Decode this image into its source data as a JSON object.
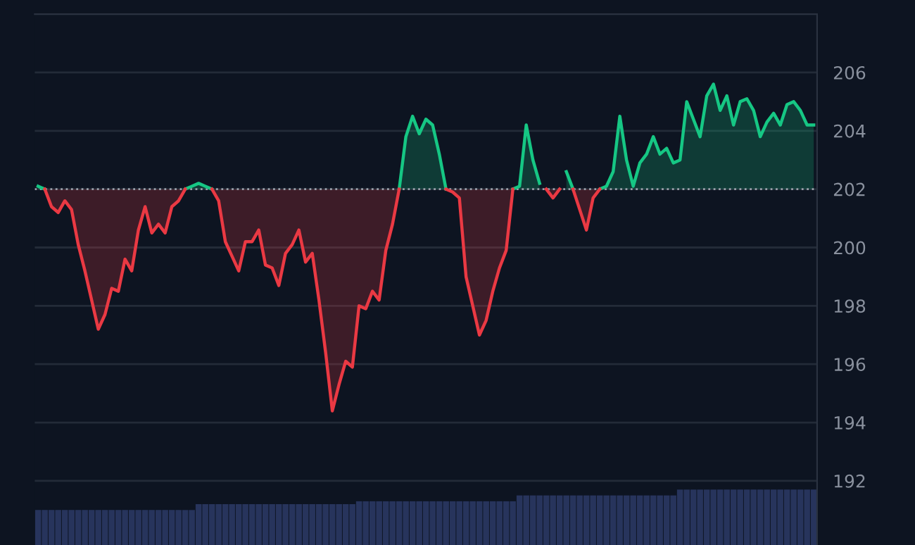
{
  "chart_data": {
    "type": "line",
    "categories": [
      null,
      null,
      null,
      null,
      null,
      null,
      null,
      null,
      null,
      null,
      null,
      null,
      null,
      null,
      null,
      null,
      null,
      null,
      null,
      null,
      null,
      null,
      null,
      null,
      null,
      null,
      null,
      null,
      null,
      null,
      null,
      null,
      null,
      null,
      null,
      null,
      null,
      null,
      null,
      null,
      null,
      null,
      null,
      null,
      null,
      null,
      null,
      null,
      null,
      null,
      null,
      null,
      null,
      null,
      null,
      null,
      null,
      null,
      null,
      null,
      null,
      null,
      null,
      null,
      null,
      null,
      null,
      null,
      null,
      null,
      null,
      null,
      null,
      null,
      null,
      null,
      null,
      null,
      null,
      null,
      null,
      null,
      null,
      null,
      null,
      null,
      null,
      null,
      null,
      null,
      null,
      null,
      null,
      null,
      null,
      null,
      null,
      null,
      null,
      null,
      null,
      null,
      null,
      null,
      null,
      null,
      null,
      null,
      null,
      null,
      null,
      null,
      null,
      null,
      null,
      null,
      null
    ],
    "series": [
      {
        "type": "bar",
        "color": "#27345c",
        "values": [
          191.0,
          191.0,
          191.0,
          191.0,
          191.0,
          191.0,
          191.0,
          191.0,
          191.0,
          191.0,
          191.0,
          191.0,
          191.0,
          191.0,
          191.0,
          191.0,
          191.0,
          191.0,
          191.0,
          191.0,
          191.0,
          191.0,
          191.0,
          191.0,
          191.2,
          191.2,
          191.2,
          191.2,
          191.2,
          191.2,
          191.2,
          191.2,
          191.2,
          191.2,
          191.2,
          191.2,
          191.2,
          191.2,
          191.2,
          191.2,
          191.2,
          191.2,
          191.2,
          191.2,
          191.2,
          191.2,
          191.2,
          191.2,
          191.3,
          191.3,
          191.3,
          191.3,
          191.3,
          191.3,
          191.3,
          191.3,
          191.3,
          191.3,
          191.3,
          191.3,
          191.3,
          191.3,
          191.3,
          191.3,
          191.3,
          191.3,
          191.3,
          191.3,
          191.3,
          191.3,
          191.3,
          191.3,
          191.5,
          191.5,
          191.5,
          191.5,
          191.5,
          191.5,
          191.5,
          191.5,
          191.5,
          191.5,
          191.5,
          191.5,
          191.5,
          191.5,
          191.5,
          191.5,
          191.5,
          191.5,
          191.5,
          191.5,
          191.5,
          191.5,
          191.5,
          191.5,
          191.7,
          191.7,
          191.7,
          191.7,
          191.7,
          191.7,
          191.7,
          191.7,
          191.7,
          191.7,
          191.7,
          191.7,
          191.7,
          191.7,
          191.7,
          191.7,
          191.7,
          191.7,
          191.7,
          191.7,
          191.7
        ]
      },
      {
        "color": "#16c784",
        "values": [
          202.1,
          202,
          null,
          null,
          null,
          null,
          null,
          null,
          null,
          null,
          null,
          null,
          null,
          null,
          null,
          null,
          null,
          null,
          null,
          null,
          null,
          null,
          202,
          202.1,
          202.2,
          202.1,
          202,
          null,
          null,
          null,
          null,
          null,
          null,
          null,
          null,
          null,
          null,
          null,
          null,
          null,
          null,
          null,
          null,
          null,
          null,
          null,
          null,
          null,
          null,
          null,
          null,
          null,
          null,
          null,
          202,
          203.8,
          204.5,
          203.9,
          204.4,
          204.2,
          203.2,
          202,
          null,
          null,
          null,
          null,
          null,
          null,
          null,
          null,
          null,
          202,
          202.1,
          204.2,
          203.0,
          202.2,
          null,
          null,
          null,
          202.6,
          202,
          null,
          null,
          null,
          202,
          202.1,
          202.6,
          204.5,
          203.0,
          202.1,
          202.9,
          203.2,
          203.8,
          203.2,
          203.4,
          202.9,
          203.0,
          205.0,
          204.4,
          203.8,
          205.2,
          205.6,
          204.7,
          205.2,
          204.2,
          205.0,
          205.1,
          204.7,
          203.8,
          204.3,
          204.6,
          204.2,
          204.9,
          205.0,
          204.7,
          204.2,
          204.2
        ]
      },
      {
        "color": "#ea3943",
        "values": [
          null,
          202,
          201.4,
          201.2,
          201.6,
          201.3,
          200.1,
          199.2,
          198.2,
          197.2,
          197.7,
          198.6,
          198.5,
          199.6,
          199.2,
          200.6,
          201.4,
          200.5,
          200.8,
          200.5,
          201.4,
          201.6,
          202,
          null,
          null,
          null,
          202,
          201.6,
          200.2,
          199.7,
          199.2,
          200.2,
          200.2,
          200.6,
          199.4,
          199.3,
          198.7,
          199.8,
          200.1,
          200.6,
          199.5,
          199.8,
          198.2,
          196.4,
          194.4,
          195.3,
          196.1,
          195.9,
          198.0,
          197.9,
          198.5,
          198.2,
          199.9,
          200.8,
          202,
          null,
          null,
          null,
          null,
          null,
          null,
          202,
          201.9,
          201.7,
          199.0,
          198.0,
          197.0,
          197.5,
          198.5,
          199.3,
          199.9,
          202,
          null,
          null,
          null,
          null,
          202,
          201.7,
          202,
          null,
          202,
          201.3,
          200.6,
          201.7,
          202,
          null,
          null,
          null,
          null,
          null,
          null,
          null,
          null,
          null,
          null,
          null,
          null,
          null,
          null,
          null,
          null,
          null,
          null,
          null,
          null,
          null,
          null,
          null,
          null,
          null,
          null,
          null,
          null,
          null,
          null,
          null,
          null
        ]
      }
    ],
    "ylim": [
      189.8,
      208
    ],
    "yticks": [
      192,
      194,
      196,
      198,
      200,
      202,
      204,
      206
    ],
    "grid": "y",
    "ref_lines": [
      {
        "axis": "y",
        "value": 202,
        "color": "#9aa0aa",
        "line_style": "dotted"
      }
    ]
  }
}
